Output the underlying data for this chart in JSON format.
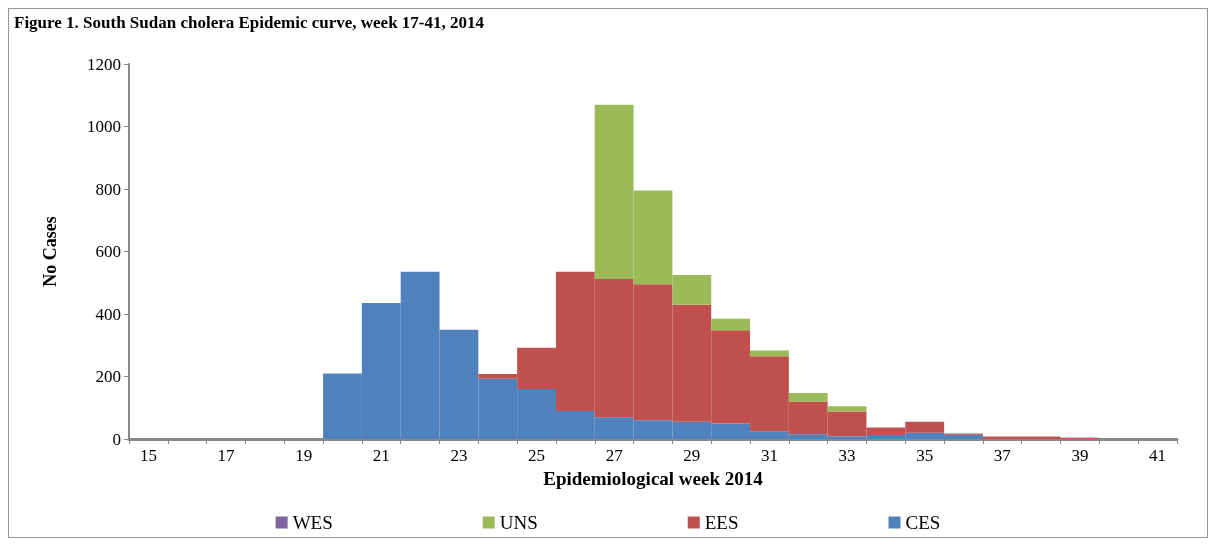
{
  "chart_data": {
    "type": "bar",
    "title": "Figure 1. South Sudan cholera Epidemic curve, week 17-41, 2014",
    "xlabel": "Epidemiological week 2014",
    "ylabel": "No Cases",
    "categories": [
      "15",
      null,
      "17",
      null,
      "19",
      null,
      "21",
      null,
      "23",
      null,
      "25",
      null,
      "27",
      null,
      "29",
      null,
      "31",
      null,
      "33",
      null,
      "35",
      null,
      "37",
      null,
      "39",
      null,
      "41"
    ],
    "stacked": true,
    "ylim": [
      0,
      1200
    ],
    "yticks": [
      0,
      200,
      400,
      600,
      800,
      1000,
      1200
    ],
    "grid": false,
    "legend": "bottom",
    "series": [
      {
        "name": "CES",
        "color": "#4f81bd",
        "values": [
          0,
          0,
          0,
          0,
          0,
          210,
          435,
          535,
          350,
          193,
          160,
          90,
          70,
          60,
          55,
          50,
          25,
          15,
          9,
          13,
          20,
          14,
          null,
          0,
          0,
          0,
          0
        ]
      },
      {
        "name": "EES",
        "color": "#c0504d",
        "values": [
          0,
          0,
          0,
          0,
          0,
          0,
          0,
          0,
          0,
          15,
          132,
          445,
          442,
          435,
          375,
          298,
          240,
          105,
          79,
          24,
          35,
          4,
          8,
          8,
          4,
          null,
          0
        ]
      },
      {
        "name": "UNS",
        "color": "#9bbb59",
        "values": [
          0,
          0,
          0,
          0,
          0,
          0,
          0,
          0,
          0,
          0,
          0,
          0,
          558,
          300,
          95,
          37,
          18,
          27,
          17,
          0,
          0,
          0,
          0,
          0,
          0,
          0,
          0
        ]
      },
      {
        "name": "WES",
        "color": "#8064a2",
        "values": [
          0,
          0,
          0,
          0,
          0,
          0,
          0,
          0,
          0,
          0,
          0,
          0,
          0,
          0,
          0,
          0,
          0,
          0,
          0,
          0,
          0,
          0,
          0,
          0,
          0,
          0,
          0
        ]
      }
    ]
  }
}
